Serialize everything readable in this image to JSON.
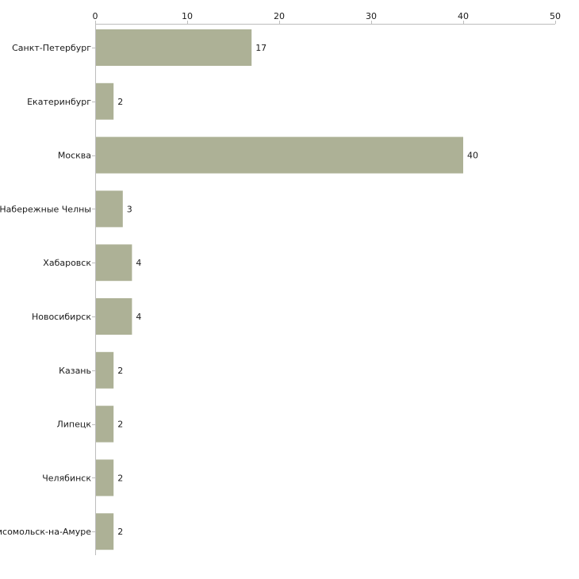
{
  "chart_data": {
    "type": "bar",
    "orientation": "horizontal",
    "title": "",
    "xlabel": "",
    "ylabel": "",
    "xlim": [
      0,
      50
    ],
    "xticks": [
      0,
      10,
      20,
      30,
      40,
      50
    ],
    "grid": false,
    "legend": "none",
    "bar_color": "#adb196",
    "categories": [
      "Санкт-Петербург",
      "Екатеринбург",
      "Москва",
      "Набережные Челны",
      "Хабаровск",
      "Новосибирск",
      "Казань",
      "Липецк",
      "Челябинск",
      "Комсомольск-на-Амуре"
    ],
    "values": [
      17,
      2,
      40,
      3,
      4,
      4,
      2,
      2,
      2,
      2
    ]
  }
}
